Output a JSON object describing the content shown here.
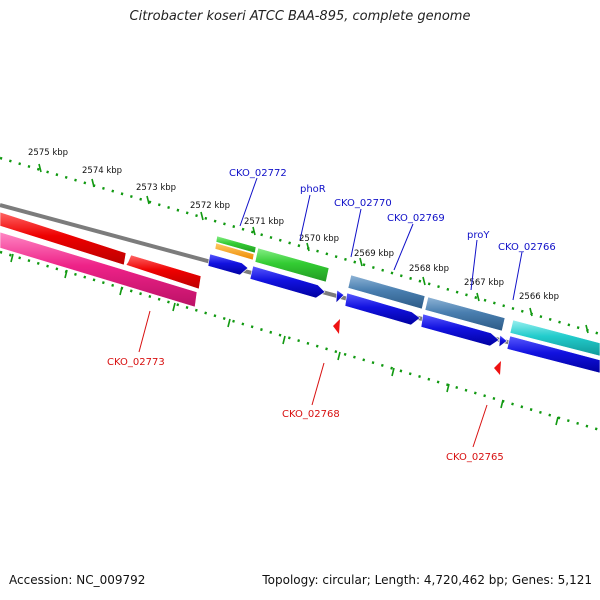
{
  "title": "Citrobacter koseri ATCC BAA-895, complete genome",
  "footer": {
    "accession": "Accession: NC_009792",
    "topology": "Topology: circular; Length: 4,720,462 bp; Genes: 5,121"
  },
  "colors": {
    "backbone": "#808080",
    "tick": "#119911",
    "forward_label": "#1010c8",
    "reverse_label": "#d81010",
    "cds_blue": "#1212e0",
    "cds_red": "#ee1111",
    "cds_pink": "#ee2288",
    "cds_green": "#33cc33",
    "cds_orange": "#ff9900",
    "cds_steel": "#4a7fb0",
    "cds_cyan": "#22cccc"
  },
  "scale_labels": [
    "2575 kbp",
    "2574 kbp",
    "2573 kbp",
    "2572 kbp",
    "2571 kbp",
    "2570 kbp",
    "2569 kbp",
    "2568 kbp",
    "2567 kbp",
    "2566 kbp"
  ],
  "gene_labels_top": [
    "CKO_02772",
    "phoR",
    "CKO_02770",
    "CKO_02769",
    "proY",
    "CKO_02766"
  ],
  "gene_labels_bottom": [
    "CKO_02773",
    "CKO_02768",
    "CKO_02765"
  ]
}
